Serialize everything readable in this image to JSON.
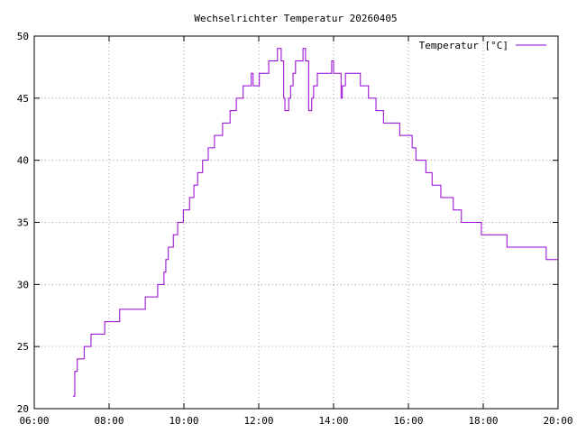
{
  "chart_data": {
    "type": "line",
    "title": "Wechselrichter Temperatur 20260405",
    "x": [
      "07:02",
      "07:05",
      "07:09",
      "07:20",
      "07:31",
      "07:53",
      "08:17",
      "08:58",
      "09:18",
      "09:28",
      "09:31",
      "09:35",
      "09:43",
      "09:50",
      "09:59",
      "10:09",
      "10:16",
      "10:22",
      "10:30",
      "10:39",
      "10:49",
      "11:02",
      "11:14",
      "11:24",
      "11:35",
      "11:48",
      "11:51",
      "12:01",
      "12:16",
      "12:30",
      "12:36",
      "12:40",
      "12:42",
      "12:48",
      "12:51",
      "12:55",
      "12:59",
      "13:11",
      "13:15",
      "13:20",
      "13:25",
      "13:28",
      "13:34",
      "13:57",
      "14:00",
      "14:12",
      "14:14",
      "14:19",
      "14:43",
      "14:56",
      "15:08",
      "15:20",
      "15:46",
      "16:06",
      "16:12",
      "16:28",
      "16:38",
      "16:52",
      "17:12",
      "17:25",
      "17:57",
      "18:38",
      "19:41",
      "20:00"
    ],
    "series": [
      {
        "name": "Temperatur [°C]",
        "color": "#9400d3",
        "values": [
          21,
          23,
          24,
          25,
          26,
          27,
          28,
          29,
          30,
          31,
          32,
          33,
          34,
          35,
          36,
          37,
          38,
          39,
          40,
          41,
          42,
          43,
          44,
          45,
          46,
          47,
          46,
          47,
          48,
          49,
          48,
          45,
          44,
          45,
          46,
          47,
          48,
          49,
          48,
          44,
          45,
          46,
          47,
          48,
          47,
          45,
          46,
          47,
          46,
          45,
          44,
          43,
          42,
          41,
          40,
          39,
          38,
          37,
          36,
          35,
          34,
          33,
          32,
          32
        ]
      }
    ],
    "xlim": [
      "06:00",
      "20:00"
    ],
    "xticks": [
      "06:00",
      "08:00",
      "10:00",
      "12:00",
      "14:00",
      "16:00",
      "18:00",
      "20:00"
    ],
    "ylim": [
      20,
      50
    ],
    "yticks": [
      20,
      25,
      30,
      35,
      40,
      45,
      50
    ],
    "grid": true,
    "legend": "top-right",
    "step": true
  }
}
